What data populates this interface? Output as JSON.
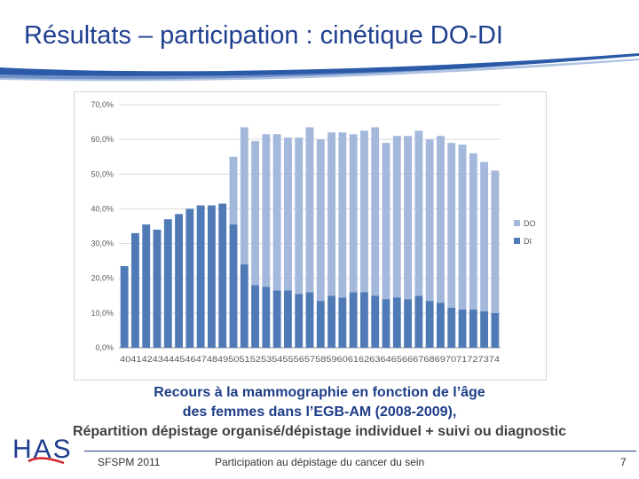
{
  "slide": {
    "title": "Résultats – participation : cinétique DO-DI",
    "caption_line1": "Recours à la mammographie en fonction de l’âge",
    "caption_line2": "des femmes dans l’EGB-AM (2008-2009),",
    "caption_line3": "Répartition dépistage organisé/dépistage individuel + suivi ou diagnostic"
  },
  "footer": {
    "org": "SFSPM  2011",
    "subject": "Participation au dépistage du cancer du sein",
    "page_number": "7"
  },
  "logo": {
    "text": "HAS"
  },
  "colors": {
    "title": "#1f3f8f",
    "DO": "#a4b8dc",
    "DI": "#4f7ab6",
    "accent_swoosh": "#2a5aa8"
  },
  "chart_data": {
    "type": "bar",
    "stacked": true,
    "categories": [
      "40",
      "41",
      "42",
      "43",
      "44",
      "45",
      "46",
      "47",
      "48",
      "49",
      "50",
      "51",
      "52",
      "53",
      "54",
      "55",
      "56",
      "57",
      "58",
      "59",
      "60",
      "61",
      "62",
      "63",
      "64",
      "65",
      "66",
      "67",
      "68",
      "69",
      "70",
      "71",
      "72",
      "73",
      "74"
    ],
    "category_axis_text": "4041424344454647484950515253545556575859606162636465666768697071727374",
    "y_ticks": [
      "0,0%",
      "10,0%",
      "20,0%",
      "30,0%",
      "40,0%",
      "50,0%",
      "60,0%",
      "70,0%"
    ],
    "ylim": [
      0,
      70
    ],
    "grid": true,
    "legend_position": "right",
    "series": [
      {
        "name": "DO",
        "color": "#a4b8dc",
        "values": [
          0,
          0,
          0,
          0,
          0,
          0,
          0,
          0,
          0,
          0,
          19.5,
          39.5,
          41.5,
          44,
          45,
          44,
          45,
          47.5,
          46.5,
          47,
          47.5,
          45.5,
          46.5,
          48.5,
          45,
          46.5,
          47,
          47.5,
          46.5,
          48,
          47.5,
          47.5,
          45,
          43,
          41
        ]
      },
      {
        "name": "DI",
        "color": "#4f7ab6",
        "values": [
          23.5,
          33,
          35.5,
          34,
          37,
          38.5,
          40,
          41,
          41,
          41.5,
          35.5,
          24,
          18,
          17.5,
          16.5,
          16.5,
          15.5,
          16,
          13.5,
          15,
          14.5,
          16,
          16,
          15,
          14,
          14.5,
          14,
          15,
          13.5,
          13,
          11.5,
          11,
          11,
          10.5,
          10
        ]
      }
    ]
  }
}
